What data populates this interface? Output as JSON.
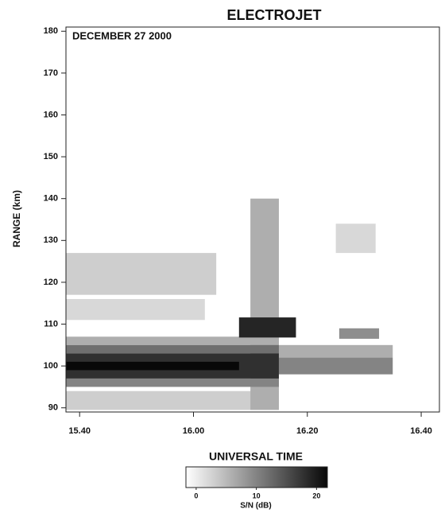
{
  "chart_data": {
    "type": "heatmap",
    "title": "ELECTROJET",
    "annotation": "DECEMBER 27 2000",
    "y_label": "RANGE (km)",
    "x_label": "UNIVERSAL TIME",
    "xlim": [
      937.6,
      1003.2
    ],
    "xticks": [
      {
        "value": 940,
        "label": "15.40"
      },
      {
        "value": 960,
        "label": "16.00"
      },
      {
        "value": 980,
        "label": "16.20"
      },
      {
        "value": 1000,
        "label": "16.40"
      }
    ],
    "ylim": [
      89,
      181
    ],
    "yticks": [
      90,
      100,
      110,
      120,
      130,
      140,
      150,
      160,
      170,
      180
    ],
    "colorbar": {
      "label": "S/N (dB)",
      "lim": [
        -1.7,
        21.8
      ],
      "ticks": [
        0,
        10,
        20
      ]
    },
    "patches": [
      {
        "time": [
          937.6,
          964
        ],
        "range": [
          117,
          127
        ],
        "snr": 3
      },
      {
        "time": [
          937.6,
          962
        ],
        "range": [
          111,
          116
        ],
        "snr": 2
      },
      {
        "time": [
          937.6,
          975
        ],
        "range": [
          89.5,
          94
        ],
        "snr": 3
      },
      {
        "time": [
          985,
          992
        ],
        "range": [
          127,
          134
        ],
        "snr": 2
      },
      {
        "time": [
          970,
          975
        ],
        "range": [
          89.5,
          140
        ],
        "snr": 6
      },
      {
        "time": [
          937.6,
          975
        ],
        "range": [
          105,
          107
        ],
        "snr": 6
      },
      {
        "time": [
          975,
          995
        ],
        "range": [
          102,
          105
        ],
        "snr": 6
      },
      {
        "time": [
          975,
          995
        ],
        "range": [
          98,
          102
        ],
        "snr": 10
      },
      {
        "time": [
          937.6,
          975
        ],
        "range": [
          95,
          97
        ],
        "snr": 10
      },
      {
        "time": [
          937.6,
          975
        ],
        "range": [
          103,
          105
        ],
        "snr": 12
      },
      {
        "time": [
          985.6,
          992.6
        ],
        "range": [
          106.5,
          109
        ],
        "snr": 9
      },
      {
        "time": [
          937.6,
          975
        ],
        "range": [
          97,
          103
        ],
        "snr": 18
      },
      {
        "time": [
          937.6,
          968
        ],
        "range": [
          99,
          101
        ],
        "snr": 22
      },
      {
        "time": [
          968,
          978
        ],
        "range": [
          106.8,
          111.6
        ],
        "snr": 19
      }
    ]
  }
}
